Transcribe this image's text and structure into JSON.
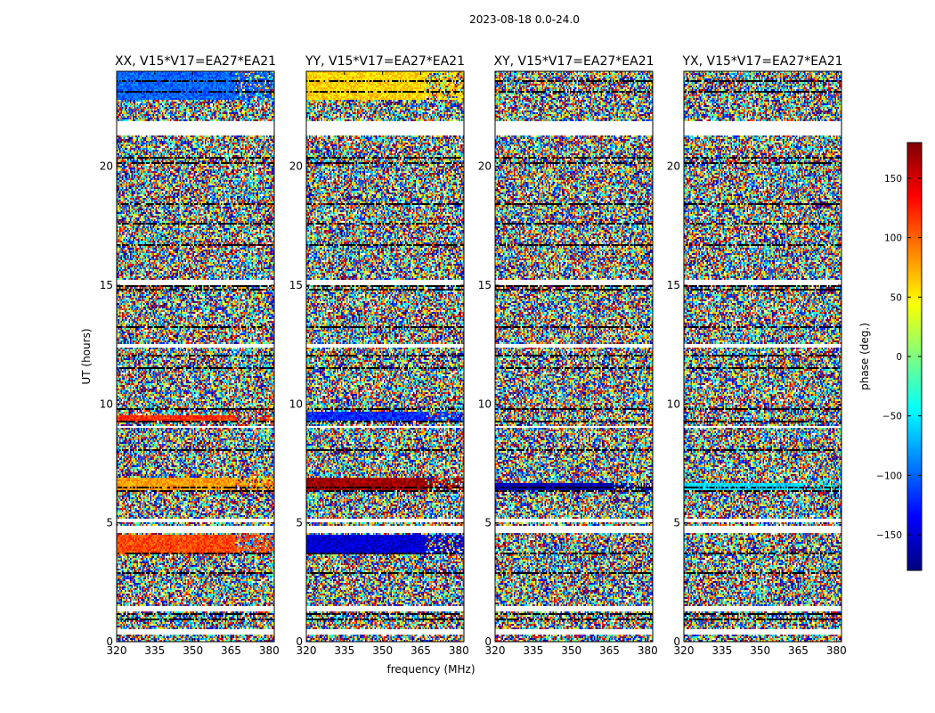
{
  "figure_title": "2023-08-18 0.0-24.0",
  "chart_data": {
    "type": "heatmap",
    "xlabel": "frequency (MHz)",
    "ylabel": "UT (hours)",
    "xlim": [
      320,
      382
    ],
    "ylim": [
      0,
      24
    ],
    "x_ticks": [
      "320",
      "335",
      "350",
      "365",
      "380"
    ],
    "y_ticks": [
      "0",
      "5",
      "10",
      "15",
      "20"
    ],
    "colorbar": {
      "label": "phase (deg.)",
      "range": [
        -180,
        180
      ],
      "ticks": [
        "150",
        "100",
        "50",
        "0",
        "−50",
        "−100",
        "−150"
      ],
      "colormap": [
        "#00007f",
        "#0000ff",
        "#007fff",
        "#00ffff",
        "#7fff7f",
        "#ffff00",
        "#ff7f00",
        "#ff0000",
        "#7f0000"
      ]
    },
    "panels": [
      {
        "title": "XX, V15*V17=EA27*EA21",
        "bands": [
          {
            "start": 22.8,
            "end": 24.0,
            "phase": -100,
            "note": "cyan/blue structured band"
          },
          {
            "start": 6.4,
            "end": 6.9,
            "phase": 80
          },
          {
            "start": 9.3,
            "end": 9.5,
            "phase": 120
          },
          {
            "start": 3.7,
            "end": 4.5,
            "phase": 110
          }
        ]
      },
      {
        "title": "YY, V15*V17=EA27*EA21",
        "bands": [
          {
            "start": 22.8,
            "end": 24.0,
            "phase": 60,
            "note": "yellow/orange structured band"
          },
          {
            "start": 6.4,
            "end": 6.9,
            "phase": 170
          },
          {
            "start": 9.3,
            "end": 9.7,
            "phase": -120
          },
          {
            "start": 3.7,
            "end": 4.5,
            "phase": -150
          }
        ]
      },
      {
        "title": "XY, V15*V17=EA27*EA21",
        "bands": [
          {
            "start": 6.4,
            "end": 6.7,
            "phase": -165
          }
        ]
      },
      {
        "title": "YX, V15*V17=EA27*EA21",
        "bands": [
          {
            "start": 6.4,
            "end": 6.7,
            "phase": -60
          }
        ]
      }
    ],
    "blank_gaps_hours": [
      [
        21.3,
        21.9
      ],
      [
        15.0,
        15.2
      ],
      [
        12.4,
        12.55
      ],
      [
        9.0,
        9.1
      ],
      [
        5.0,
        5.15
      ],
      [
        4.6,
        4.9
      ],
      [
        1.3,
        1.5
      ],
      [
        0.3,
        0.5
      ]
    ]
  }
}
